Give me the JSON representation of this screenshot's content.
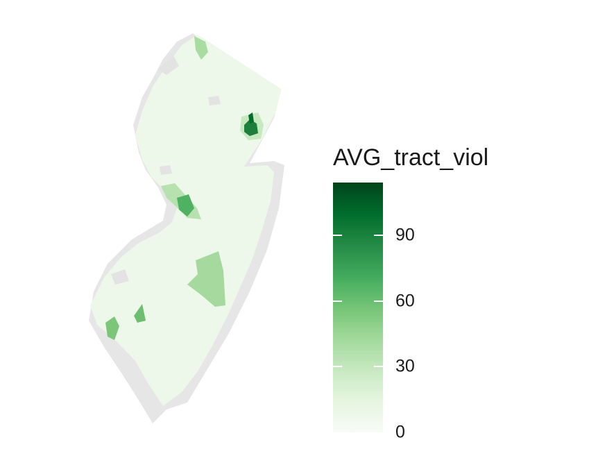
{
  "legend": {
    "title": "AVG_tract_viol",
    "min": 0,
    "max": 114,
    "ticks": [
      {
        "value": 0,
        "label": "0"
      },
      {
        "value": 30,
        "label": "30"
      },
      {
        "value": 60,
        "label": "60"
      },
      {
        "value": 90,
        "label": "90"
      }
    ],
    "gradient_colors": [
      "#f7fcf5",
      "#e5f5e0",
      "#c7e9c0",
      "#a1d99b",
      "#74c476",
      "#41ab5d",
      "#238b45",
      "#006d2c",
      "#00441b"
    ]
  },
  "colors": {
    "missing": "#e6e6e6",
    "base": "#eef8ea"
  }
}
